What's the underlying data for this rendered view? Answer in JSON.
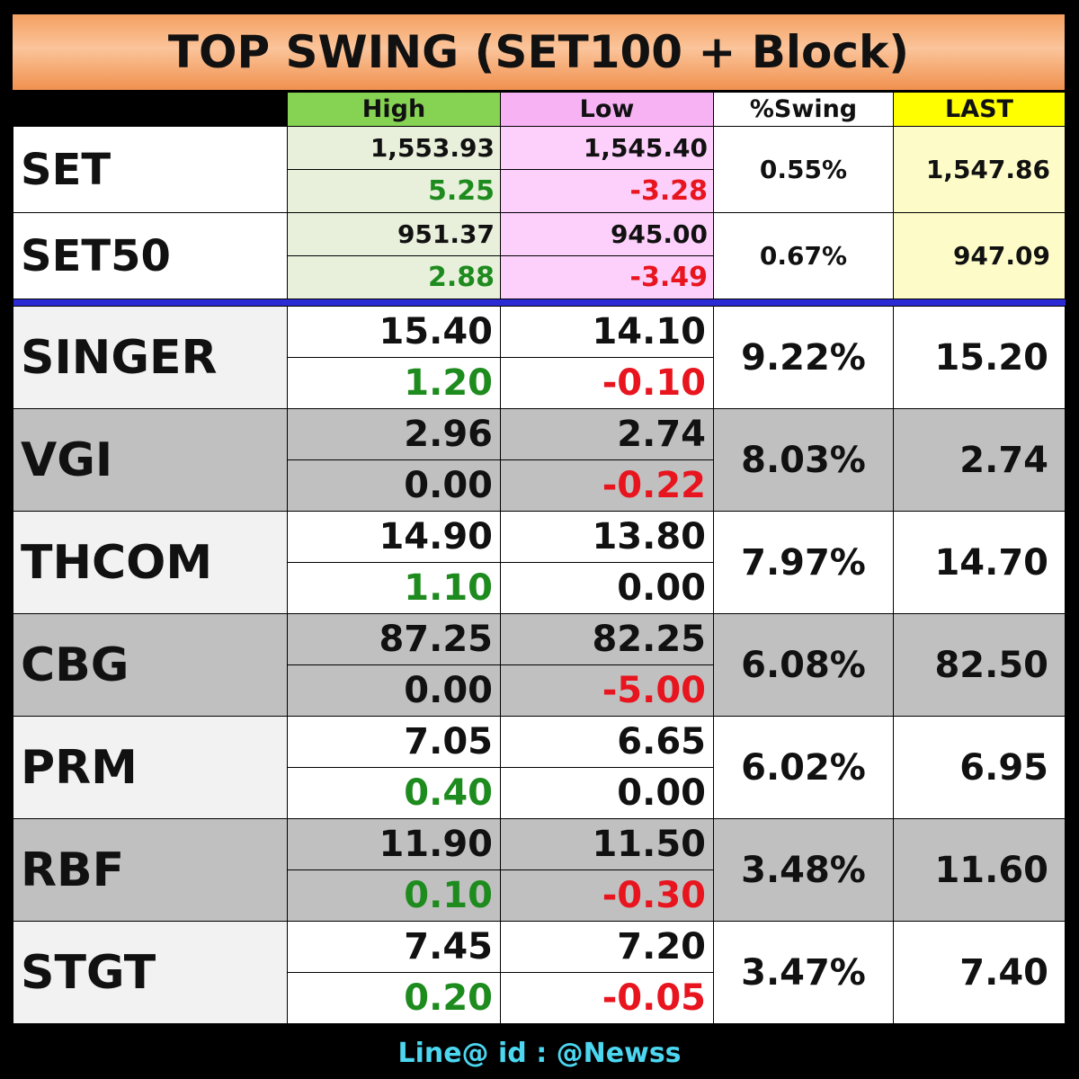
{
  "title": "TOP SWING (SET100 + Block)",
  "headers": {
    "high": "High",
    "low": "Low",
    "swing": "%Swing",
    "last": "LAST"
  },
  "indices": [
    {
      "name": "SET",
      "high": "1,553.93",
      "high_chg": "5.25",
      "low": "1,545.40",
      "low_chg": "-3.28",
      "swing": "0.55%",
      "last": "1,547.86"
    },
    {
      "name": "SET50",
      "high": "951.37",
      "high_chg": "2.88",
      "low": "945.00",
      "low_chg": "-3.49",
      "swing": "0.67%",
      "last": "947.09"
    }
  ],
  "stocks": [
    {
      "name": "SINGER",
      "high": "15.40",
      "high_chg": "1.20",
      "low": "14.10",
      "low_chg": "-0.10",
      "swing": "9.22%",
      "last": "15.20"
    },
    {
      "name": "VGI",
      "high": "2.96",
      "high_chg": "0.00",
      "low": "2.74",
      "low_chg": "-0.22",
      "swing": "8.03%",
      "last": "2.74"
    },
    {
      "name": "THCOM",
      "high": "14.90",
      "high_chg": "1.10",
      "low": "13.80",
      "low_chg": "0.00",
      "swing": "7.97%",
      "last": "14.70"
    },
    {
      "name": "CBG",
      "high": "87.25",
      "high_chg": "0.00",
      "low": "82.25",
      "low_chg": "-5.00",
      "swing": "6.08%",
      "last": "82.50"
    },
    {
      "name": "PRM",
      "high": "7.05",
      "high_chg": "0.40",
      "low": "6.65",
      "low_chg": "0.00",
      "swing": "6.02%",
      "last": "6.95"
    },
    {
      "name": "RBF",
      "high": "11.90",
      "high_chg": "0.10",
      "low": "11.50",
      "low_chg": "-0.30",
      "swing": "3.48%",
      "last": "11.60"
    },
    {
      "name": "STGT",
      "high": "7.45",
      "high_chg": "0.20",
      "low": "7.20",
      "low_chg": "-0.05",
      "swing": "3.47%",
      "last": "7.40"
    }
  ],
  "colors": {
    "up": "#1e8b1e",
    "down": "#e8141e",
    "separator": "#2b2bd6",
    "footer": "#4cd6f0"
  },
  "footer": "Line@ id : @Newss"
}
